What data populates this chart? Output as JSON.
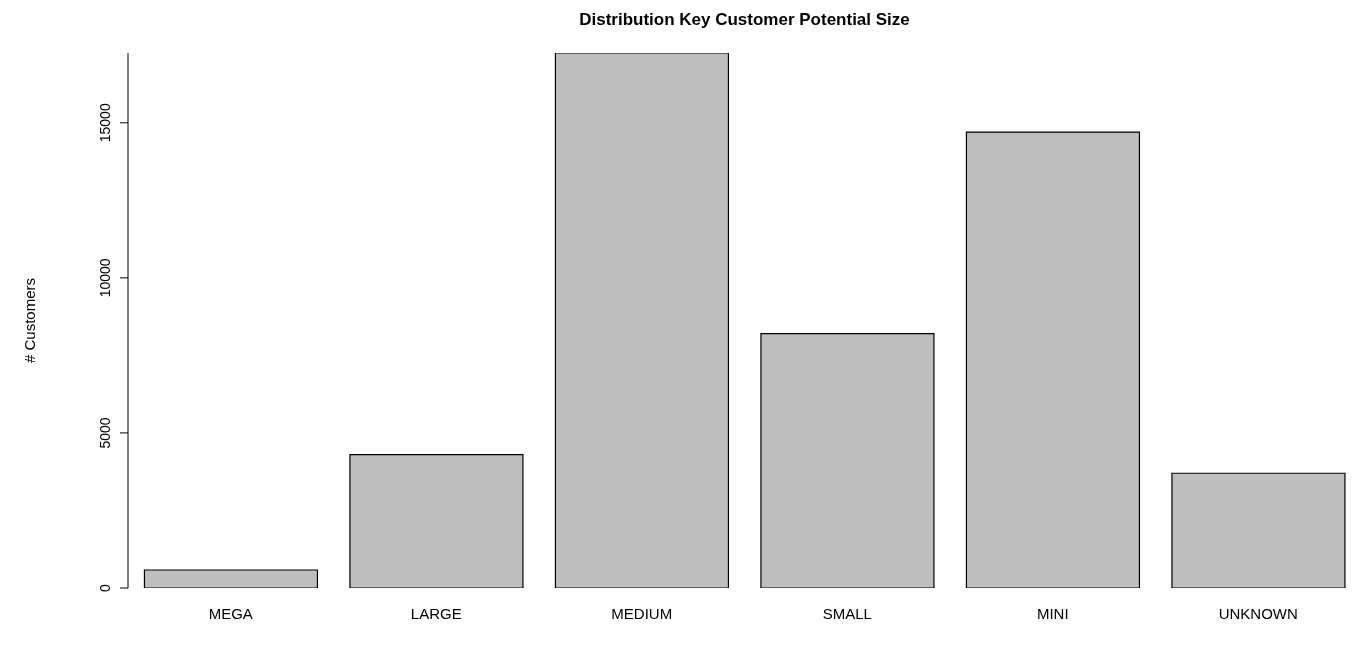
{
  "chart_data": {
    "type": "bar",
    "title": "Distribution Key Customer Potential Size",
    "ylabel": "# Customers",
    "categories": [
      "MEGA",
      "LARGE",
      "MEDIUM",
      "SMALL",
      "MINI",
      "UNKNOWN"
    ],
    "values": [
      580,
      4300,
      17250,
      8200,
      14700,
      3700
    ],
    "color": "#bebebe",
    "ylim": [
      0,
      17250
    ],
    "yticks": [
      0,
      5000,
      10000,
      15000
    ],
    "grid": false
  }
}
